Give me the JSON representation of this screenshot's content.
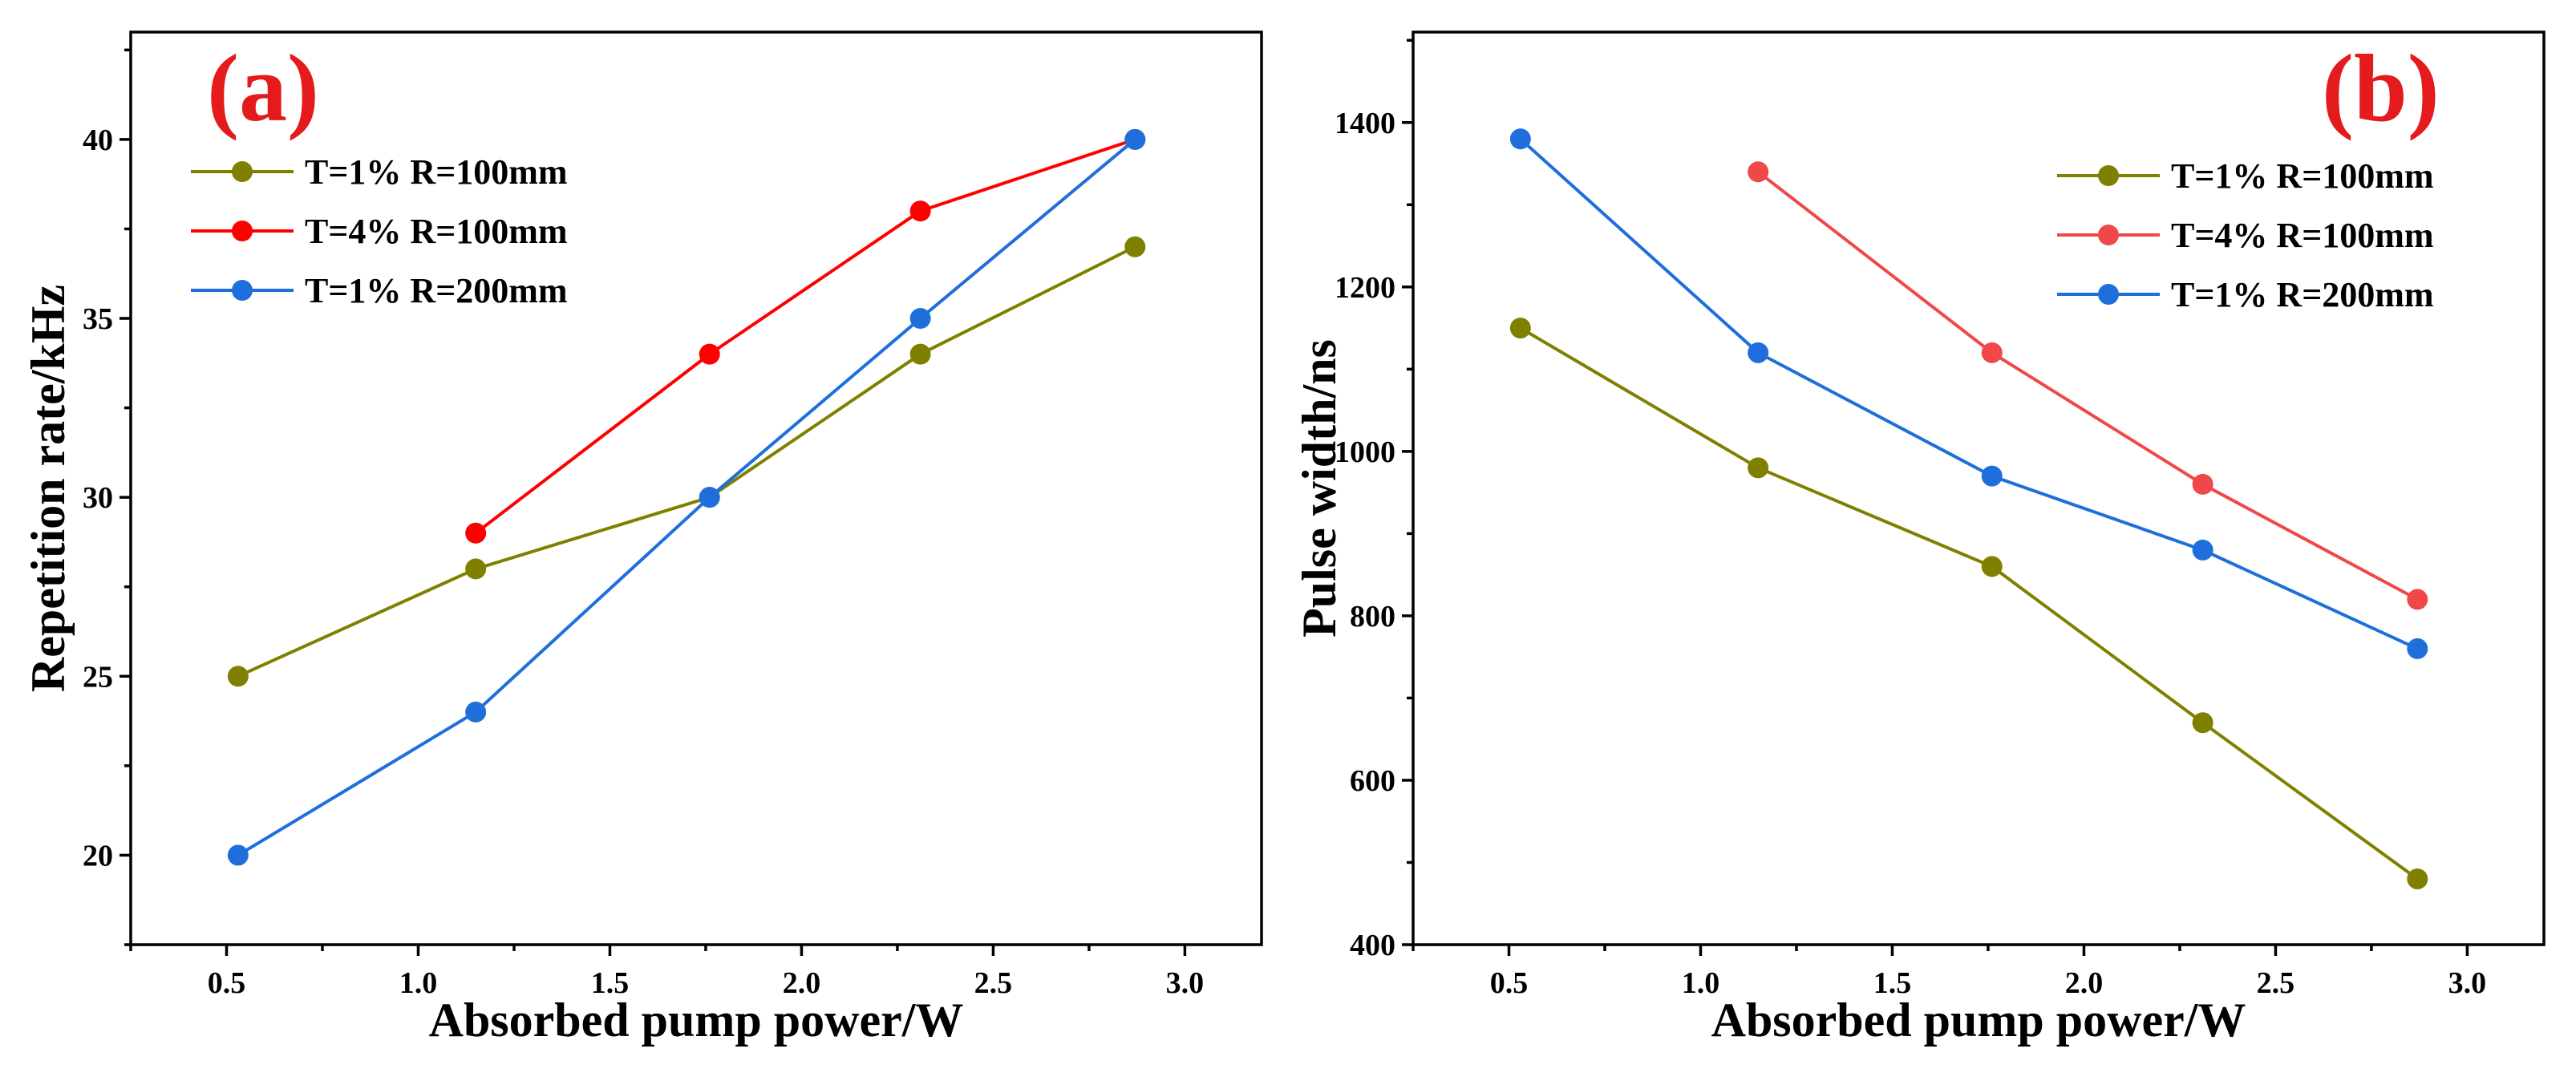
{
  "chart_data": [
    {
      "type": "line",
      "panel_label": "(a)",
      "panel_label_color": "#e41a1c",
      "xlabel": "Absorbed pump power/W",
      "ylabel": "Repetition rate/kHz",
      "xlim": [
        0.25,
        3.2
      ],
      "ylim": [
        17.5,
        43
      ],
      "x_ticks": [
        0.5,
        1.0,
        1.5,
        2.0,
        2.5,
        3.0
      ],
      "x_tick_labels": [
        "0.5",
        "1.0",
        "1.5",
        "2.0",
        "2.5",
        "3.0"
      ],
      "y_ticks": [
        20,
        25,
        30,
        35,
        40
      ],
      "y_tick_labels": [
        "20",
        "25",
        "30",
        "35",
        "40"
      ],
      "legend_position": "top-left",
      "series": [
        {
          "name": "T=1% R=100mm",
          "color": "#808000",
          "x": [
            0.53,
            1.15,
            1.76,
            2.31,
            2.87
          ],
          "y": [
            25,
            28,
            30,
            34,
            37
          ]
        },
        {
          "name": "T=4% R=100mm",
          "color": "#ff0000",
          "x": [
            1.15,
            1.76,
            2.31,
            2.87
          ],
          "y": [
            29,
            34,
            38,
            40
          ]
        },
        {
          "name": "T=1% R=200mm",
          "color": "#1e6fdc",
          "x": [
            0.53,
            1.15,
            1.76,
            2.31,
            2.87
          ],
          "y": [
            20,
            24,
            30,
            35,
            40
          ]
        }
      ]
    },
    {
      "type": "line",
      "panel_label": "(b)",
      "panel_label_color": "#e41a1c",
      "xlabel": "Absorbed pump power/W",
      "ylabel": "Pulse width/ns",
      "xlim": [
        0.25,
        3.2
      ],
      "ylim": [
        400,
        1510
      ],
      "x_ticks": [
        0.5,
        1.0,
        1.5,
        2.0,
        2.5,
        3.0
      ],
      "x_tick_labels": [
        "0.5",
        "1.0",
        "1.5",
        "2.0",
        "2.5",
        "3.0"
      ],
      "y_ticks": [
        400,
        600,
        800,
        1000,
        1200,
        1400
      ],
      "y_tick_labels": [
        "400",
        "600",
        "800",
        "1000",
        "1200",
        "1400"
      ],
      "legend_position": "top-right",
      "series": [
        {
          "name": "T=1% R=100mm",
          "color": "#808000",
          "x": [
            0.53,
            1.15,
            1.76,
            2.31,
            2.87
          ],
          "y": [
            1150,
            980,
            860,
            670,
            480
          ]
        },
        {
          "name": "T=4% R=100mm",
          "color": "#f04848",
          "x": [
            1.15,
            1.76,
            2.31,
            2.87
          ],
          "y": [
            1340,
            1120,
            960,
            820
          ]
        },
        {
          "name": "T=1% R=200mm",
          "color": "#1e6fdc",
          "x": [
            0.53,
            1.15,
            1.76,
            2.31,
            2.87
          ],
          "y": [
            1380,
            1120,
            970,
            880,
            760
          ]
        }
      ]
    }
  ]
}
